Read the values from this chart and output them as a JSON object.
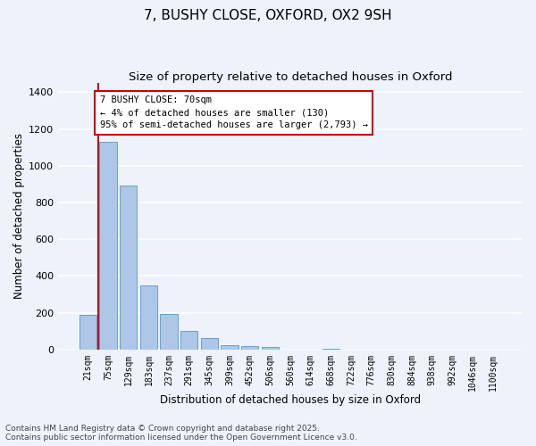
{
  "title_line1": "7, BUSHY CLOSE, OXFORD, OX2 9SH",
  "title_line2": "Size of property relative to detached houses in Oxford",
  "xlabel": "Distribution of detached houses by size in Oxford",
  "ylabel": "Number of detached properties",
  "categories": [
    "21sqm",
    "75sqm",
    "129sqm",
    "183sqm",
    "237sqm",
    "291sqm",
    "345sqm",
    "399sqm",
    "452sqm",
    "506sqm",
    "560sqm",
    "614sqm",
    "668sqm",
    "722sqm",
    "776sqm",
    "830sqm",
    "884sqm",
    "938sqm",
    "992sqm",
    "1046sqm",
    "1100sqm"
  ],
  "values": [
    190,
    1130,
    890,
    350,
    195,
    100,
    60,
    22,
    17,
    12,
    0,
    0,
    5,
    0,
    0,
    0,
    0,
    0,
    0,
    0,
    0
  ],
  "bar_color": "#aec6e8",
  "bar_edge_color": "#5599cc",
  "vline_color": "#cc0000",
  "annotation_text": "7 BUSHY CLOSE: 70sqm\n← 4% of detached houses are smaller (130)\n95% of semi-detached houses are larger (2,793) →",
  "annotation_box_color": "#cc0000",
  "ylim": [
    0,
    1450
  ],
  "yticks": [
    0,
    200,
    400,
    600,
    800,
    1000,
    1200,
    1400
  ],
  "footer_line1": "Contains HM Land Registry data © Crown copyright and database right 2025.",
  "footer_line2": "Contains public sector information licensed under the Open Government Licence v3.0.",
  "bg_color": "#edf2fb",
  "grid_color": "#ffffff",
  "title_fontsize": 11,
  "subtitle_fontsize": 9.5,
  "axis_label_fontsize": 8.5,
  "tick_fontsize": 7,
  "footer_fontsize": 6.5
}
